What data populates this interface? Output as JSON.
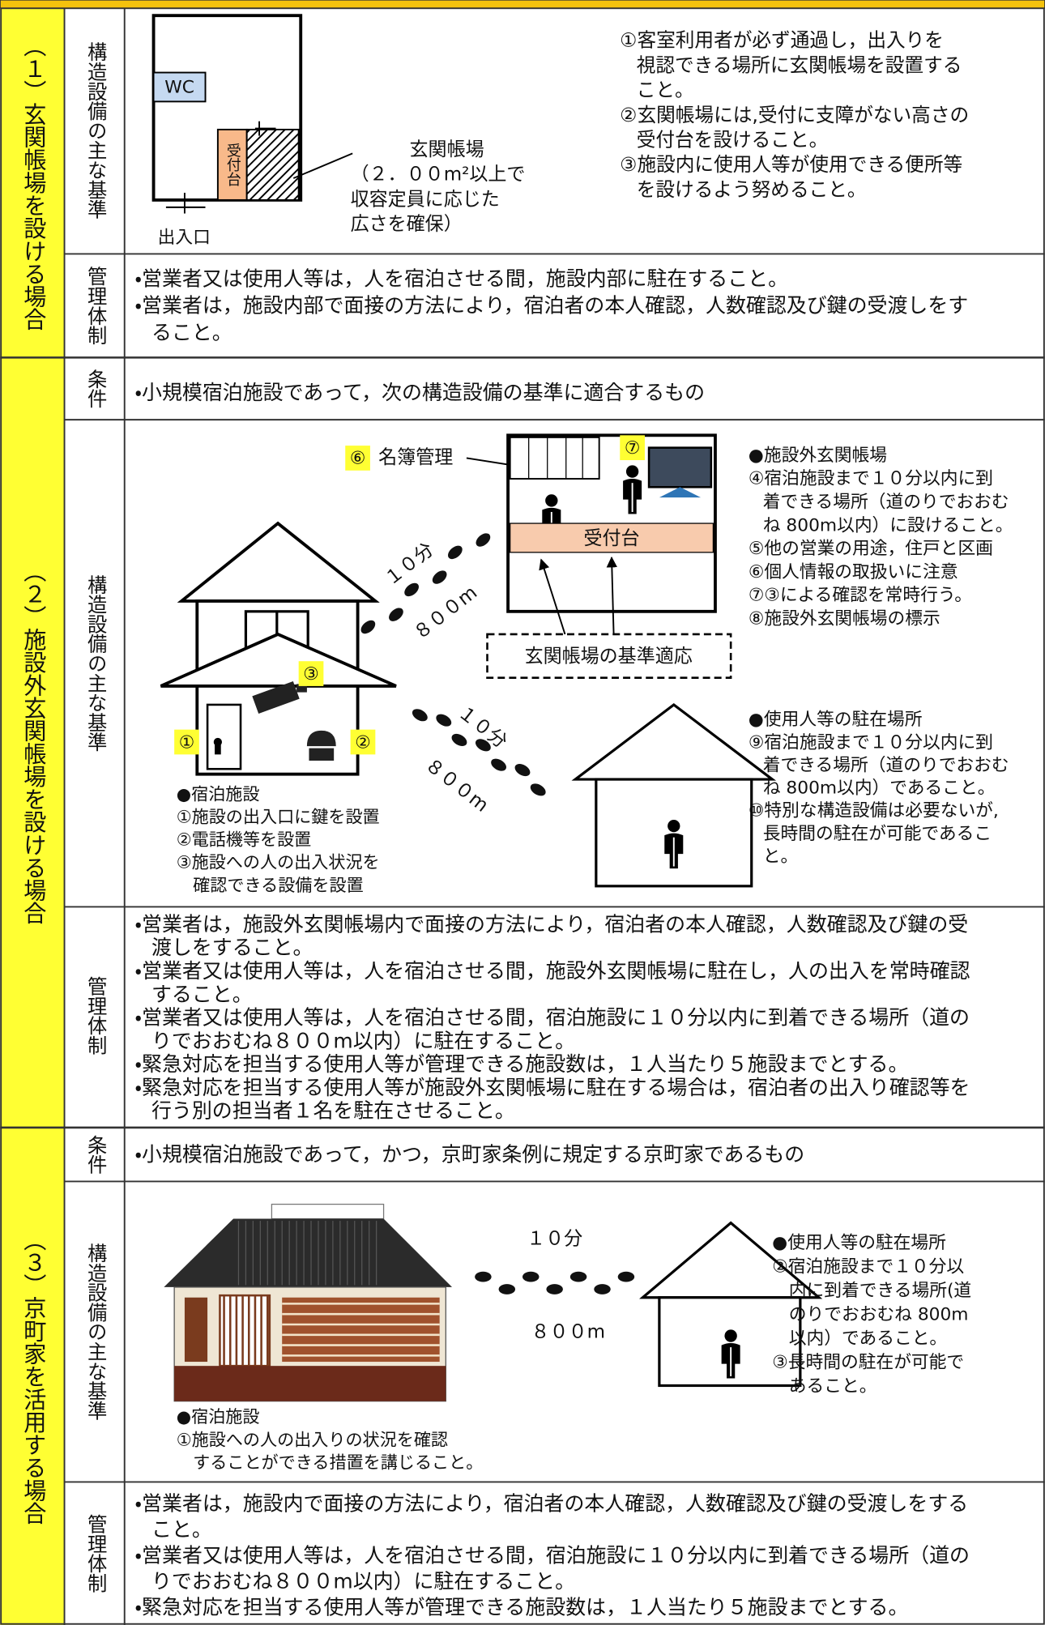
{
  "sections": [
    {
      "label": "（１）玄関帳場を設ける場合",
      "structure": {
        "header": "構造設備の主な基準",
        "diagram": {
          "wc": "WC",
          "counter": "受付台",
          "entrance": "出入口",
          "callout": [
            "玄関帳場",
            "（２．００m²以上で",
            "収容定員に応じた",
            "広さを確保）"
          ]
        },
        "notes": [
          [
            "①客室利用者が必ず通過し，出入りを",
            "視認できる場所に玄関帳場を設置する",
            "こと。"
          ],
          [
            "②玄関帳場には,受付に支障がない高さの",
            "受付台を設けること。"
          ],
          [
            "③施設内に使用人等が使用できる便所等",
            "を設けるよう努めること。"
          ]
        ]
      },
      "management": {
        "header": "管理体制",
        "items": [
          [
            "・営業者又は使用人等は，人を宿泊させる間，施設内部に駐在すること。"
          ],
          [
            "・営業者は，施設内部で面接の方法により，宿泊者の本人確認，人数確認及び鍵の受渡しをす",
            "ること。"
          ]
        ]
      }
    },
    {
      "label": "（２）施設外玄関帳場を設ける場合",
      "condition": {
        "header": "条件",
        "text": "・小規模宿泊施設であって，次の構造設備の基準に適合するもの"
      },
      "structure": {
        "header": "構造設備の主な基準",
        "diagram": {
          "marker6": "⑥",
          "roster": "名簿管理",
          "marker7": "⑦",
          "counter": "受付台",
          "walk1_time": "１０分",
          "walk1_distance": "８００m",
          "standard": "玄関帳場の基準適応",
          "marker3": "③",
          "marker1": "①",
          "marker2": "②",
          "walk2_time": "１０分",
          "walk2_distance": "８００m"
        },
        "facility_notes": [
          [
            "●宿泊施設"
          ],
          [
            "①施設の出入口に鍵を設置"
          ],
          [
            "②電話機等を設置"
          ],
          [
            "③施設への人の出入状況を",
            "確認できる設備を設置"
          ]
        ],
        "booth_notes": [
          [
            "●施設外玄関帳場"
          ],
          [
            "④宿泊施設まで１０分以内に到",
            "着できる場所（道のりでおおむ",
            "ね 800m以内）に設けること。"
          ],
          [
            "⑤他の営業の用途，住戸と区画"
          ],
          [
            "⑥個人情報の取扱いに注意"
          ],
          [
            "⑦③による確認を常時行う。"
          ],
          [
            "⑧施設外玄関帳場の標示"
          ]
        ],
        "staff_notes": [
          [
            "●使用人等の駐在場所"
          ],
          [
            "⑨宿泊施設まで１０分以内に到",
            "着できる場所（道のりでおおむ",
            "ね 800m以内）であること。"
          ],
          [
            "⑩特別な構造設備は必要ないが,",
            "長時間の駐在が可能であるこ",
            "と。"
          ]
        ]
      },
      "management": {
        "header": "管理体制",
        "items": [
          [
            "・営業者は，施設外玄関帳場内で面接の方法により，宿泊者の本人確認，人数確認及び鍵の受",
            "渡しをすること。"
          ],
          [
            "・営業者又は使用人等は，人を宿泊させる間，施設外玄関帳場に駐在し，人の出入を常時確認",
            "すること。"
          ],
          [
            "・営業者又は使用人等は，人を宿泊させる間，宿泊施設に１０分以内に到着できる場所（道の",
            "りでおおむね８００m以内）に駐在すること。"
          ],
          [
            "・緊急対応を担当する使用人等が管理できる施設数は，１人当たり５施設までとする。"
          ],
          [
            "・緊急対応を担当する使用人等が施設外玄関帳場に駐在する場合は，宿泊者の出入り確認等を",
            "行う別の担当者１名を駐在させること。"
          ]
        ]
      }
    },
    {
      "label": "（３）京町家を活用する場合",
      "condition": {
        "header": "条件",
        "text": "・小規模宿泊施設であって，かつ，京町家条例に規定する京町家であるもの"
      },
      "structure": {
        "header": "構造設備の主な基準",
        "diagram": {
          "time": "１０分",
          "distance": "８００m"
        },
        "facility_notes": [
          [
            "●宿泊施設"
          ],
          [
            "①施設への人の出入りの状況を確認",
            "することができる措置を講じること。"
          ]
        ],
        "staff_notes": [
          [
            "●使用人等の駐在場所"
          ],
          [
            "②宿泊施設まで１０分以",
            "内に到着できる場所(道",
            "のりでおおむね 800m",
            "以内）であること。"
          ],
          [
            "③長時間の駐在が可能で",
            "あること。"
          ]
        ]
      },
      "management": {
        "header": "管理体制",
        "items": [
          [
            "・営業者は，施設内で面接の方法により，宿泊者の本人確認，人数確認及び鍵の受渡しをする",
            "こと。"
          ],
          [
            "・営業者又は使用人等は，人を宿泊させる間，宿泊施設に１０分以内に到着できる場所（道の",
            "りでおおむね８００m以内）に駐在すること。"
          ],
          [
            "・緊急対応を担当する使用人等が管理できる施設数は，１人当たり５施設までとする。"
          ]
        ]
      }
    }
  ]
}
